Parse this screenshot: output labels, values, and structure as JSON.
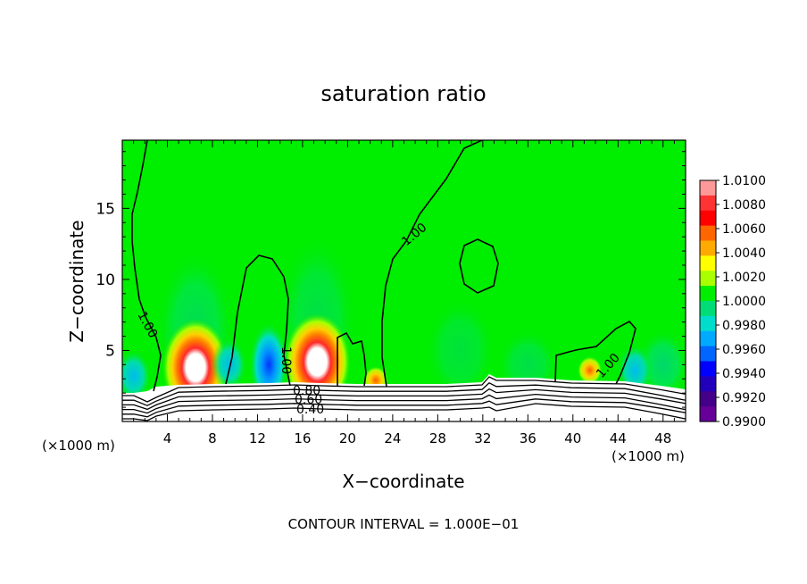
{
  "chart_data": {
    "type": "heatmap",
    "title": "saturation ratio",
    "xlabel": "X−coordinate",
    "ylabel": "Z−coordinate",
    "x_unit_left": "(×1000 m)",
    "x_unit_right": "(×1000 m)",
    "xlim": [
      0,
      50
    ],
    "ylim": [
      0,
      19.8
    ],
    "x_ticks": [
      4,
      8,
      12,
      16,
      20,
      24,
      28,
      32,
      36,
      40,
      44,
      48
    ],
    "y_ticks": [
      5,
      10,
      15
    ],
    "colorbar": {
      "range": [
        0.99,
        1.01
      ],
      "labels": [
        "1.0100",
        "1.0080",
        "1.0060",
        "1.0040",
        "1.0020",
        "1.0000",
        "0.9980",
        "0.9960",
        "0.9940",
        "0.9920",
        "0.9900"
      ],
      "colors": [
        "#ff9999",
        "#ff3333",
        "#ff0000",
        "#ff6600",
        "#ffaa00",
        "#ffff00",
        "#aaff00",
        "#00ee00",
        "#00dd77",
        "#00ddcc",
        "#00aaff",
        "#0066ff",
        "#0000ff",
        "#2200bb",
        "#440088",
        "#660099"
      ]
    },
    "contour_labels": [
      "1.00",
      "1.00",
      "1.00",
      "1.00",
      "0.80",
      "0.60",
      "0.40"
    ],
    "contour_interval_text": "CONTOUR INTERVAL = 1.000E−01",
    "features": [
      {
        "kind": "high",
        "x": 6.5,
        "z": 3.8,
        "peak": 1.01
      },
      {
        "kind": "high",
        "x": 17.3,
        "z": 4.2,
        "peak": 1.01
      },
      {
        "kind": "high",
        "x": 22.5,
        "z": 2.9,
        "peak": 1.004
      },
      {
        "kind": "high",
        "x": 41.5,
        "z": 3.6,
        "peak": 1.004
      },
      {
        "kind": "low",
        "x": 13.0,
        "z": 4.0,
        "peak": 0.993
      },
      {
        "kind": "low",
        "x": 1.0,
        "z": 3.2,
        "peak": 0.994
      },
      {
        "kind": "low",
        "x": 45.5,
        "z": 3.6,
        "peak": 0.994
      },
      {
        "kind": "low",
        "x": 9.5,
        "z": 4.0,
        "peak": 0.996
      }
    ]
  }
}
